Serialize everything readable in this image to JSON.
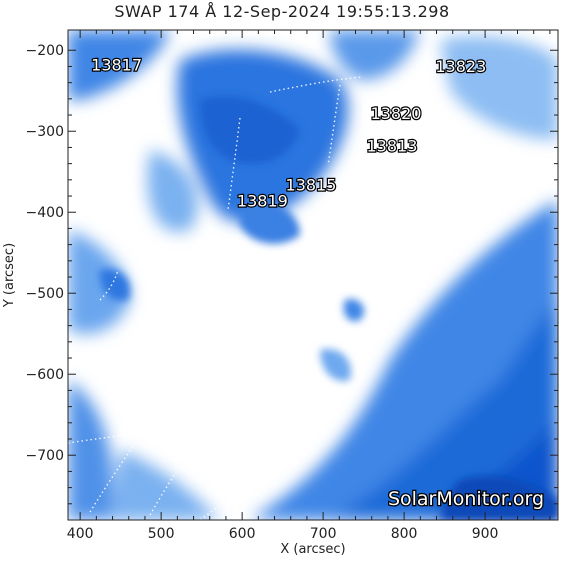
{
  "title": "SWAP 174 Å 12-Sep-2024 19:55:13.298",
  "axes": {
    "x_label": "X (arcsec)",
    "y_label": "Y (arcsec)",
    "x_ticks": [
      "400",
      "500",
      "600",
      "700",
      "800",
      "900"
    ],
    "y_ticks": [
      "-200",
      "-300",
      "-400",
      "-500",
      "-600",
      "-700"
    ],
    "x_range": [
      385,
      990
    ],
    "y_range": [
      -780,
      -175
    ]
  },
  "regions": [
    {
      "number": "13817",
      "x": 445,
      "y": -225
    },
    {
      "number": "13823",
      "x": 870,
      "y": -227
    },
    {
      "number": "13820",
      "x": 790,
      "y": -285
    },
    {
      "number": "13813",
      "x": 785,
      "y": -325
    },
    {
      "number": "13815",
      "x": 685,
      "y": -373
    },
    {
      "number": "13819",
      "x": 625,
      "y": -393
    }
  ],
  "watermark": "SolarMonitor.org",
  "colors": {
    "deep": "#0a55cc",
    "mid": "#3f86e6",
    "light": "#a9cdf7",
    "bright": "#ffffff"
  }
}
